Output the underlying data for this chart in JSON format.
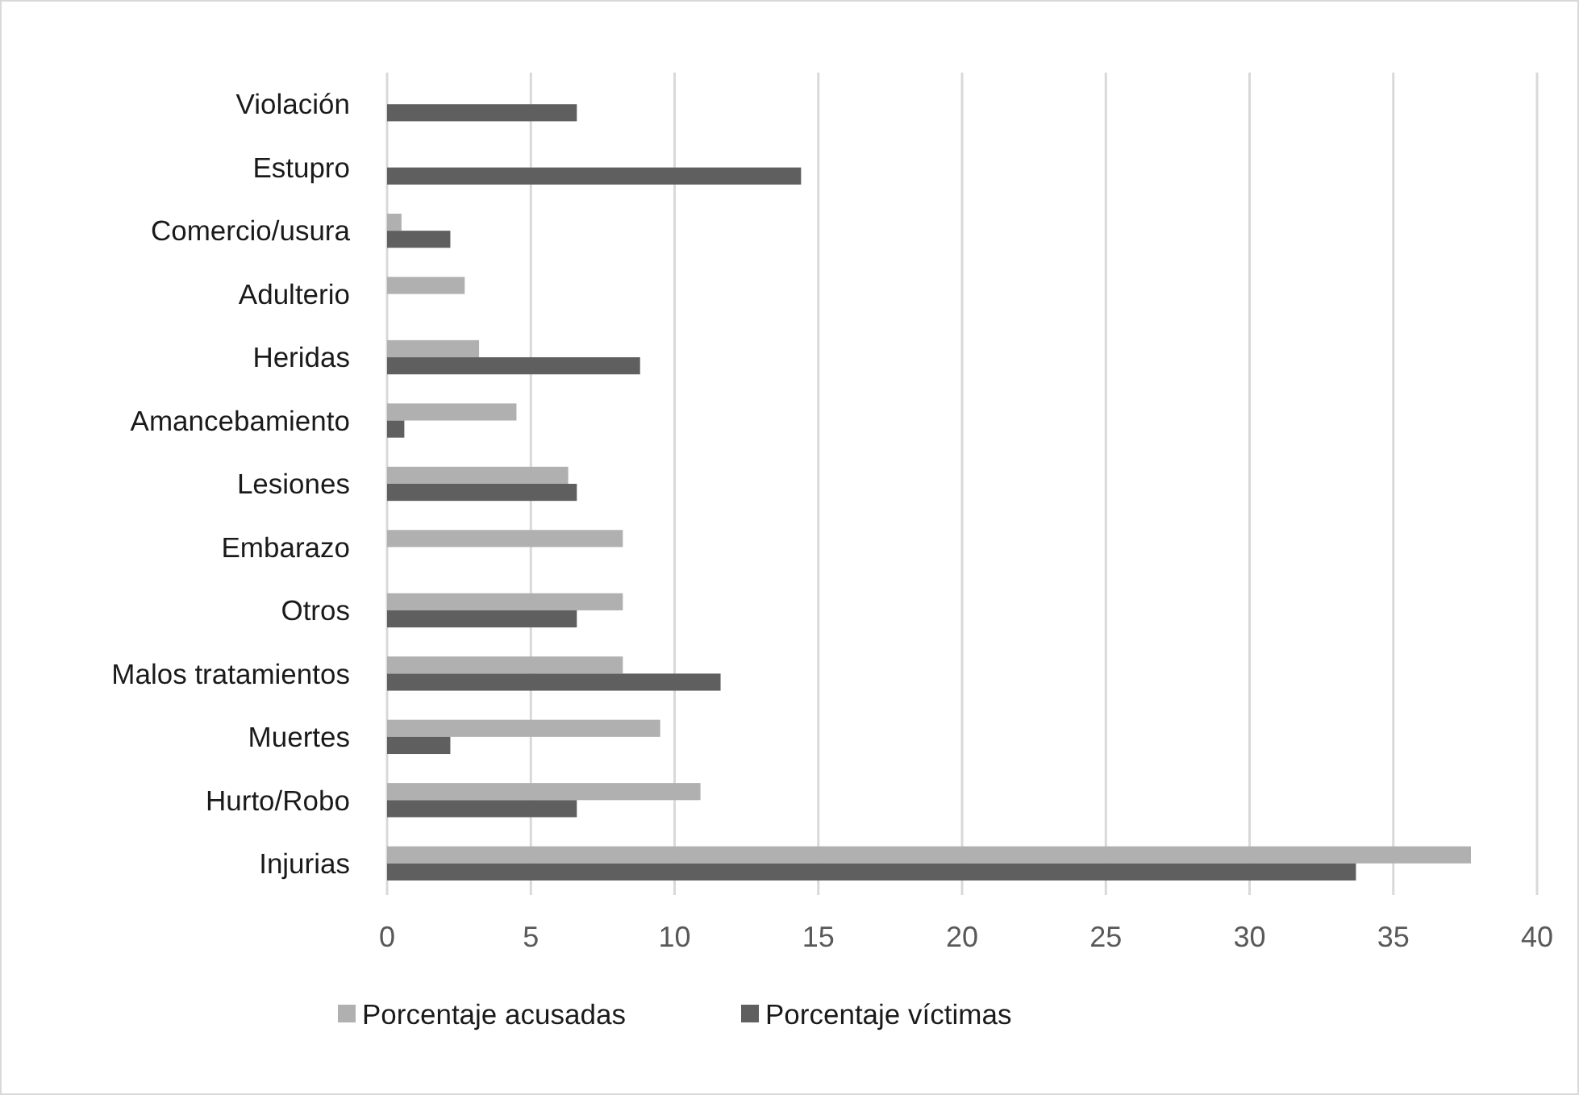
{
  "chart_data": {
    "type": "bar",
    "orientation": "horizontal",
    "categories": [
      "Violación",
      "Estupro",
      "Comercio/usura",
      "Adulterio",
      "Heridas",
      "Amancebamiento",
      "Lesiones",
      "Embarazo",
      "Otros",
      "Malos tratamientos",
      "Muertes",
      "Hurto/Robo",
      "Injurias"
    ],
    "series": [
      {
        "name": "Porcentaje acusadas",
        "color": "#b0b0b0",
        "values": [
          null,
          null,
          0.5,
          2.7,
          3.2,
          4.5,
          6.3,
          8.2,
          8.2,
          8.2,
          9.5,
          10.9,
          37.7
        ]
      },
      {
        "name": "Porcentaje víctimas",
        "color": "#5f5f5f",
        "values": [
          6.6,
          14.4,
          2.2,
          null,
          8.8,
          0.6,
          6.6,
          null,
          6.6,
          11.6,
          2.2,
          6.6,
          33.7
        ]
      }
    ],
    "xlim": [
      0,
      40
    ],
    "xticks": [
      0,
      5,
      10,
      15,
      20,
      25,
      30,
      35,
      40
    ],
    "grid": "x",
    "legend": "bottom"
  }
}
